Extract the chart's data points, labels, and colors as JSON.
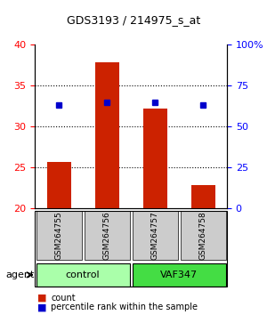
{
  "title": "GDS3193 / 214975_s_at",
  "samples": [
    "GSM264755",
    "GSM264756",
    "GSM264757",
    "GSM264758"
  ],
  "counts": [
    25.6,
    37.8,
    32.1,
    22.8
  ],
  "percentile_ranks": [
    63.0,
    64.5,
    64.5,
    63.0
  ],
  "ylim_left": [
    20,
    40
  ],
  "ylim_right": [
    0,
    100
  ],
  "yticks_left": [
    20,
    25,
    30,
    35,
    40
  ],
  "yticks_right": [
    0,
    25,
    50,
    75,
    100
  ],
  "ytick_labels_right": [
    "0",
    "25",
    "50",
    "75",
    "100%"
  ],
  "dotted_ticks": [
    25,
    30,
    35
  ],
  "bar_color": "#cc2200",
  "marker_color": "#0000cc",
  "groups": [
    {
      "label": "control",
      "indices": [
        0,
        1
      ],
      "color": "#aaffaa"
    },
    {
      "label": "VAF347",
      "indices": [
        2,
        3
      ],
      "color": "#44dd44"
    }
  ],
  "group_row_label": "agent",
  "sample_box_color": "#cccccc",
  "background_color": "#ffffff",
  "bar_width": 0.5,
  "legend_count_label": "count",
  "legend_percentile_label": "percentile rank within the sample"
}
